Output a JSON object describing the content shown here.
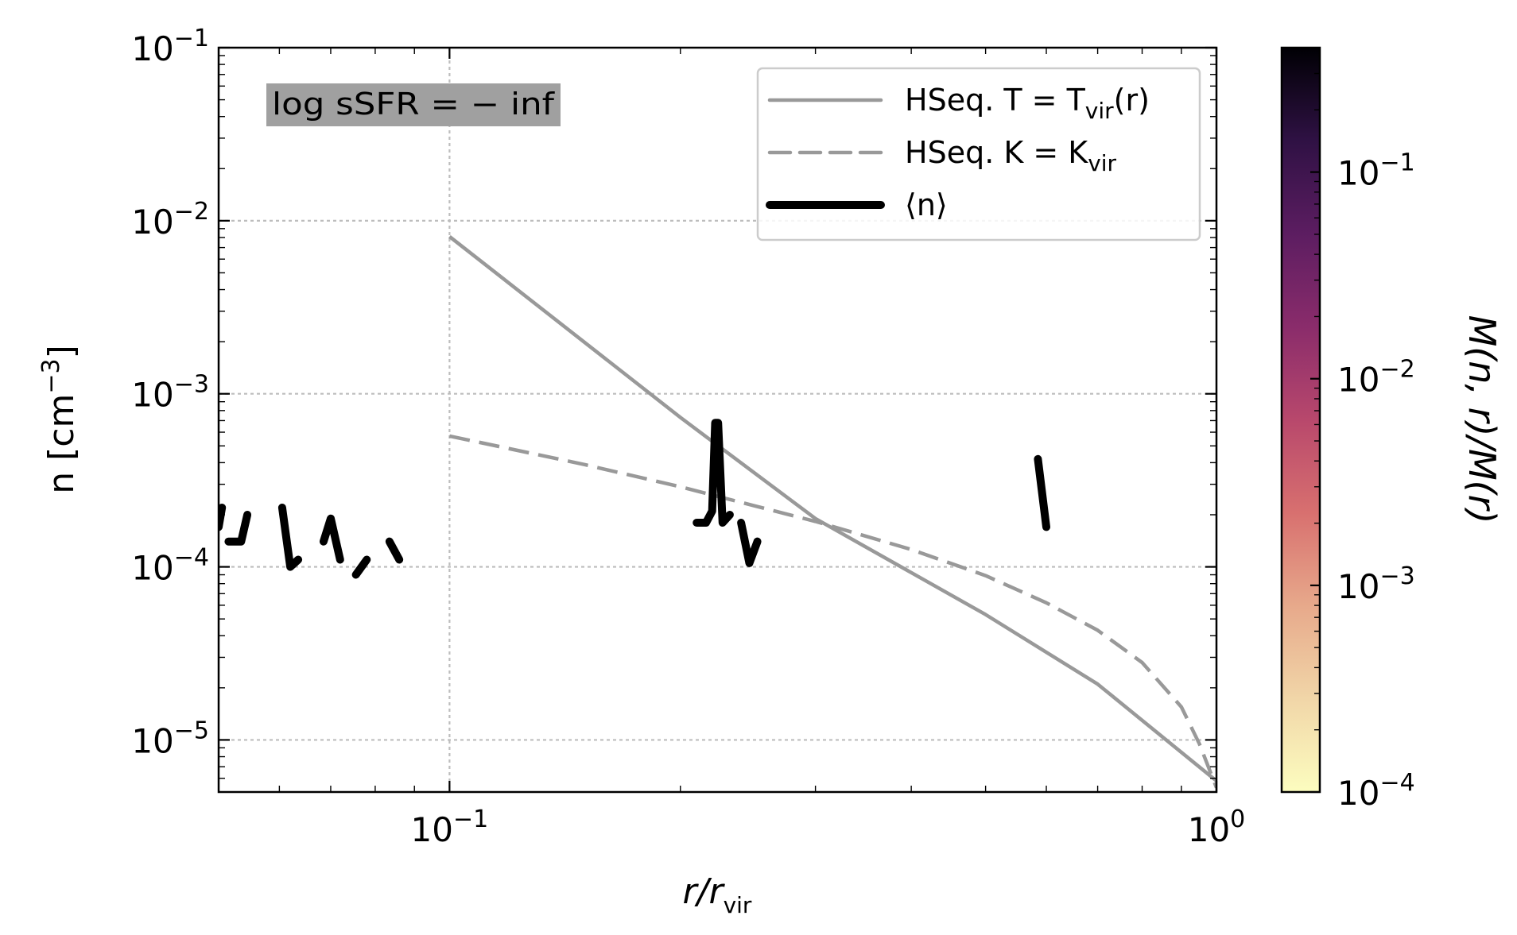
{
  "chart_data": {
    "type": "line",
    "xscale": "log",
    "yscale": "log",
    "xlim": [
      0.05,
      1.0
    ],
    "ylim": [
      5e-06,
      0.1
    ],
    "grid": true,
    "xlabel": {
      "base": "r/r",
      "sub": "vir"
    },
    "ylabel": {
      "base": "n [cm",
      "sup": "−3",
      "close": "]"
    },
    "x_ticks": [
      {
        "value": 0.1,
        "base": "10",
        "exp": "−1"
      },
      {
        "value": 1.0,
        "base": "10",
        "exp": "0"
      }
    ],
    "y_ticks": [
      {
        "value": 1e-05,
        "base": "10",
        "exp": "−5"
      },
      {
        "value": 0.0001,
        "base": "10",
        "exp": "−4"
      },
      {
        "value": 0.001,
        "base": "10",
        "exp": "−3"
      },
      {
        "value": 0.01,
        "base": "10",
        "exp": "−2"
      },
      {
        "value": 0.1,
        "base": "10",
        "exp": "−1"
      }
    ],
    "annotation": {
      "text": "log sSFR = − inf",
      "background": "#a0a0a0"
    },
    "legend": {
      "placement": "upper right",
      "entries": [
        {
          "label": "HSeq. T = T",
          "sub": "vir",
          "tail": "(r)",
          "style": "solid",
          "color": "#999999"
        },
        {
          "label": "HSeq. K = K",
          "sub": "vir",
          "tail": "",
          "style": "dashed",
          "color": "#999999"
        },
        {
          "label": "⟨n⟩",
          "sub": "",
          "tail": "",
          "style": "thick",
          "color": "#000000"
        }
      ]
    },
    "series": [
      {
        "name": "HSeq. T = Tvir(r)",
        "style": "solid",
        "color": "#999999",
        "x": [
          0.1,
          0.2,
          0.3,
          0.5,
          0.7,
          1.0
        ],
        "y": [
          0.0081,
          0.00073,
          0.00019,
          5.3e-05,
          2.1e-05,
          5.8e-06
        ]
      },
      {
        "name": "HSeq. K = Kvir",
        "style": "dashed",
        "color": "#999999",
        "x": [
          0.1,
          0.15,
          0.2,
          0.25,
          0.3,
          0.4,
          0.5,
          0.6,
          0.7,
          0.8,
          0.9,
          0.95,
          1.0
        ],
        "y": [
          0.00057,
          0.00039,
          0.00029,
          0.000225,
          0.000183,
          0.000126,
          8.9e-05,
          6.2e-05,
          4.3e-05,
          2.8e-05,
          1.55e-05,
          9.5e-06,
          5.3e-06
        ]
      },
      {
        "name": "⟨n⟩",
        "style": "thick",
        "color": "#000000",
        "segments": [
          {
            "x": [
              0.05,
              0.0505
            ],
            "y": [
              0.00017,
              0.00022
            ]
          },
          {
            "x": [
              0.0515,
              0.0535,
              0.0545
            ],
            "y": [
              0.00014,
              0.00014,
              0.0002
            ]
          },
          {
            "x": [
              0.0605,
              0.062,
              0.0635
            ],
            "y": [
              0.00022,
              0.0001,
              0.00011
            ]
          },
          {
            "x": [
              0.0685,
              0.07,
              0.072
            ],
            "y": [
              0.00014,
              0.00019,
              0.00011
            ]
          },
          {
            "x": [
              0.0755,
              0.078
            ],
            "y": [
              9e-05,
              0.00011
            ]
          },
          {
            "x": [
              0.0835,
              0.086
            ],
            "y": [
              0.00014,
              0.00011
            ]
          },
          {
            "x": [
              0.21,
              0.216,
              0.22,
              0.222,
              0.224,
              0.227,
              0.232
            ],
            "y": [
              0.00018,
              0.00018,
              0.00021,
              0.00068,
              0.00068,
              0.00018,
              0.0002
            ]
          },
          {
            "x": [
              0.24,
              0.246,
              0.252
            ],
            "y": [
              0.00018,
              0.000105,
              0.00014
            ]
          },
          {
            "x": [
              0.585,
              0.6
            ],
            "y": [
              0.00042,
              0.00017
            ]
          }
        ]
      }
    ],
    "colorbar": {
      "label": "M(n, r)/M(r)",
      "scale": "log",
      "range": [
        0.0001,
        0.4
      ],
      "colormap": "magma_r",
      "stops": [
        "#fcfdbf",
        "#f1d6a8",
        "#e7a98b",
        "#d8706f",
        "#b8486c",
        "#8a2c6b",
        "#5c1d61",
        "#2f1144",
        "#000004"
      ],
      "ticks": [
        {
          "value": 0.0001,
          "base": "10",
          "exp": "−4"
        },
        {
          "value": 0.001,
          "base": "10",
          "exp": "−3"
        },
        {
          "value": 0.01,
          "base": "10",
          "exp": "−2"
        },
        {
          "value": 0.1,
          "base": "10",
          "exp": "−1"
        }
      ]
    }
  }
}
